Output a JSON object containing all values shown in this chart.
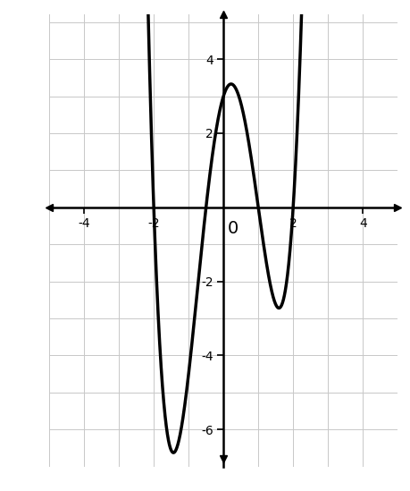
{
  "roots": [
    -2,
    -0.5,
    1,
    2
  ],
  "coeff": 1.5,
  "xlim": [
    -5,
    5
  ],
  "ylim": [
    -6.8,
    5.2
  ],
  "xticks": [
    -4,
    -2,
    2,
    4
  ],
  "yticks": [
    -6,
    -4,
    -2,
    2,
    4
  ],
  "grid_color": "#c8c8c8",
  "line_color": "#000000",
  "axis_color": "#000000",
  "background_color": "#ffffff",
  "line_width": 2.5,
  "x_plot_min": -2.85,
  "x_plot_max": 2.85,
  "figsize": [
    4.59,
    5.49
  ],
  "dpi": 100
}
